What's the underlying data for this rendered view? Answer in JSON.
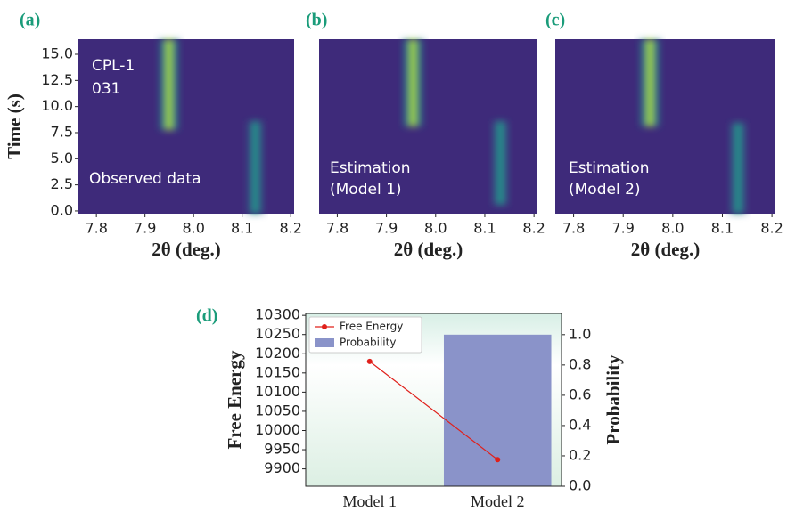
{
  "chart_data": [
    {
      "type": "heatmap",
      "panel_label": "(a)",
      "xlabel": "2θ (deg.)",
      "ylabel": "Time (s)",
      "annotations": [
        "CPL-1",
        "031",
        "Observed data"
      ],
      "xlim": [
        7.763,
        8.207
      ],
      "xticks": [
        7.8,
        7.9,
        {
          "value": 8,
          "label": "8.0"
        },
        8.1,
        8.2
      ],
      "ylim": [
        -0.26,
        16.45
      ],
      "yticks": [
        {
          "value": 0,
          "label": "0.0"
        },
        2.5,
        {
          "value": 5,
          "label": "5.0"
        },
        7.5,
        {
          "value": 10,
          "label": "10.0"
        },
        12.5,
        {
          "value": 15,
          "label": "15.0"
        }
      ]
    },
    {
      "type": "heatmap",
      "panel_label": "(b)",
      "xlabel": "2θ (deg.)",
      "annotations": [
        "Estimation",
        "(Model 1)"
      ],
      "xlim": [
        7.763,
        8.207
      ],
      "xticks": [
        7.8,
        7.9,
        {
          "value": 8,
          "label": "8.0"
        },
        8.1,
        8.2
      ],
      "ylim": [
        -0.26,
        16.45
      ]
    },
    {
      "type": "heatmap",
      "panel_label": "(c)",
      "xlabel": "2θ (deg.)",
      "annotations": [
        "Estimation",
        "(Model 2)"
      ],
      "xlim": [
        7.763,
        8.207
      ],
      "xticks": [
        7.8,
        7.9,
        {
          "value": 8,
          "label": "8.0"
        },
        8.1,
        8.2
      ],
      "ylim": [
        -0.26,
        16.45
      ]
    },
    {
      "type": "bar_line",
      "panel_label": "(d)",
      "ylabel": "Free Energy",
      "y2label": "Probability",
      "categories": [
        "Model 1",
        "Model 2"
      ],
      "legend": "upper left",
      "series": [
        {
          "name": "Free Energy",
          "color": "#e0201b",
          "values": [
            10180,
            9924
          ]
        },
        {
          "name": "Probability",
          "color": "#8a93c9",
          "axis": "y2",
          "values": [
            0,
            1.0
          ]
        }
      ],
      "ylim": [
        9855,
        10305
      ],
      "yticks": [
        9900,
        9950,
        10000,
        10050,
        10100,
        10150,
        10200,
        10250,
        10300
      ],
      "y2lim": [
        0,
        1.14
      ],
      "y2ticks": [
        {
          "value": 0,
          "label": "0.0"
        },
        0.2,
        0.4,
        0.6,
        0.8,
        {
          "value": 1,
          "label": "1.0"
        }
      ]
    }
  ]
}
